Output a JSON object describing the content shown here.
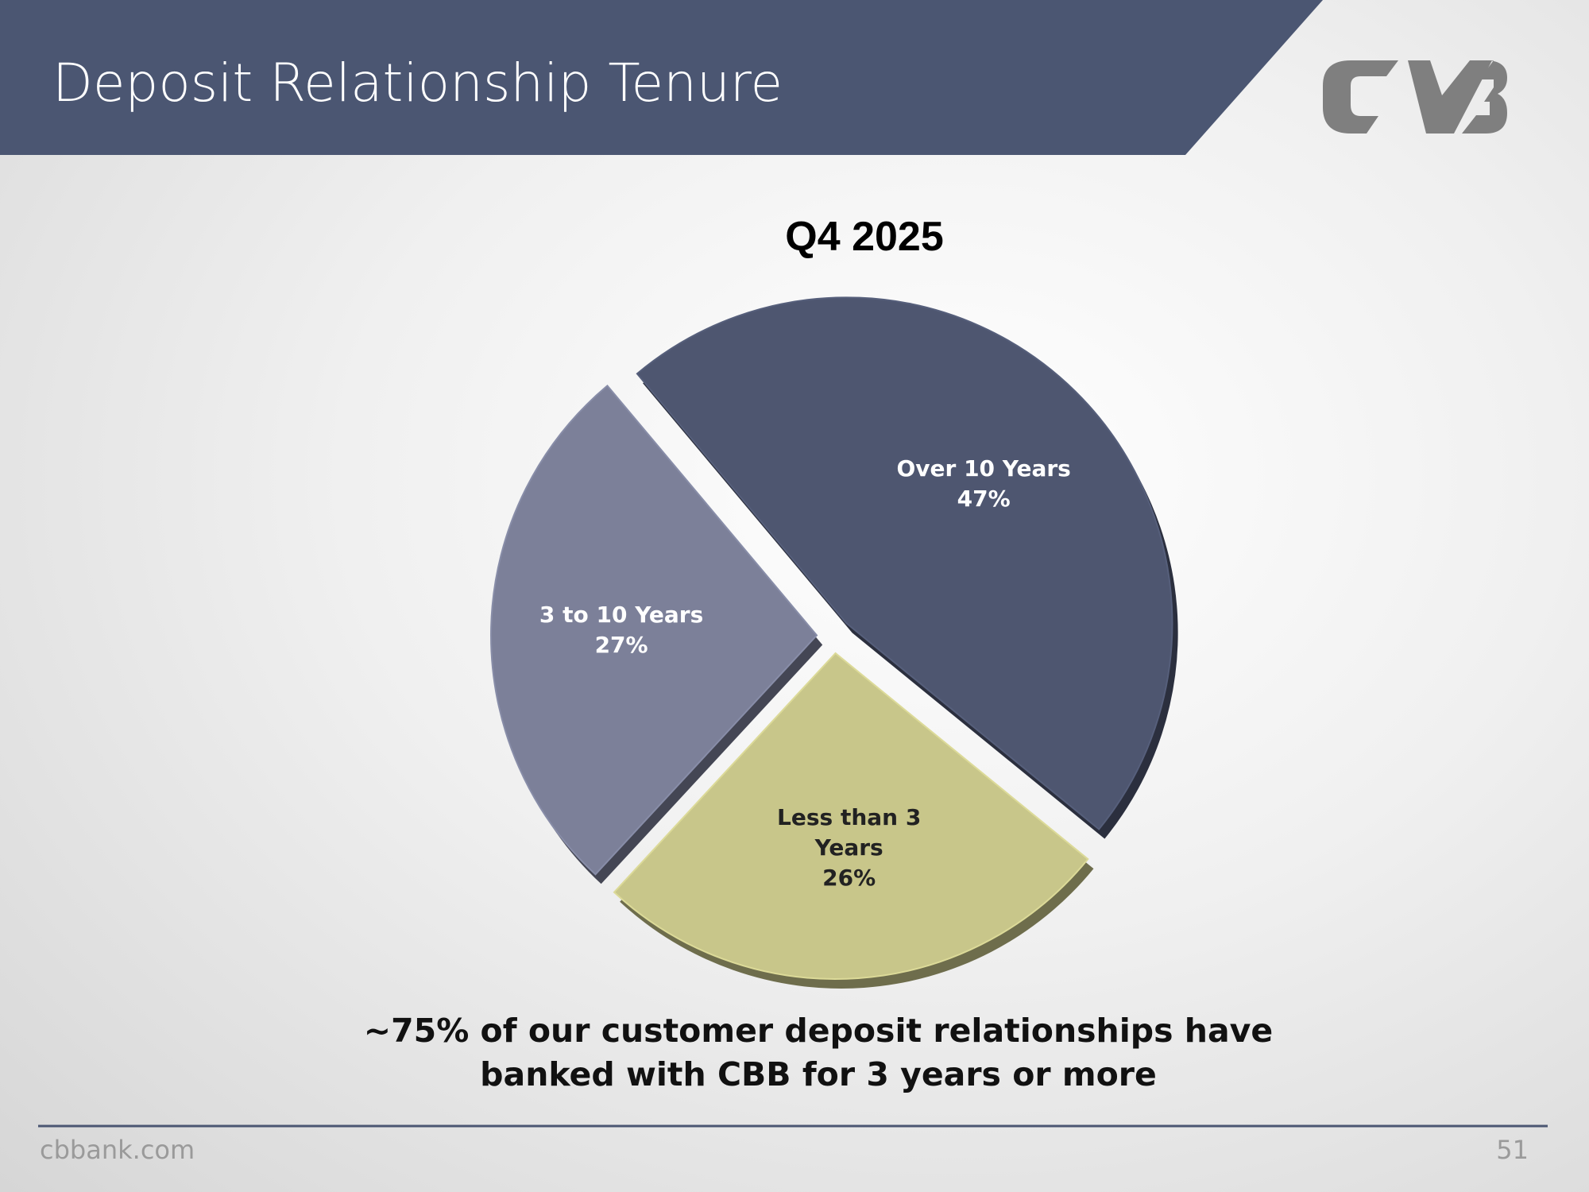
{
  "header": {
    "title": "Deposit Relationship Tenure"
  },
  "chart_data": {
    "type": "pie",
    "title": "Q4 2025",
    "categories": [
      "Over 10 Years",
      "Less than 3 Years",
      "3 to 10 Years"
    ],
    "values": [
      47,
      26,
      27
    ],
    "value_labels": [
      "47%",
      "26%",
      "27%"
    ],
    "colors": [
      "#4e5670",
      "#c8c68a",
      "#7c8099"
    ]
  },
  "caption": "~75% of our customer deposit relationships have banked with CBB for 3 years or more",
  "footer": {
    "website": "cbbank.com",
    "page_number": "51"
  }
}
